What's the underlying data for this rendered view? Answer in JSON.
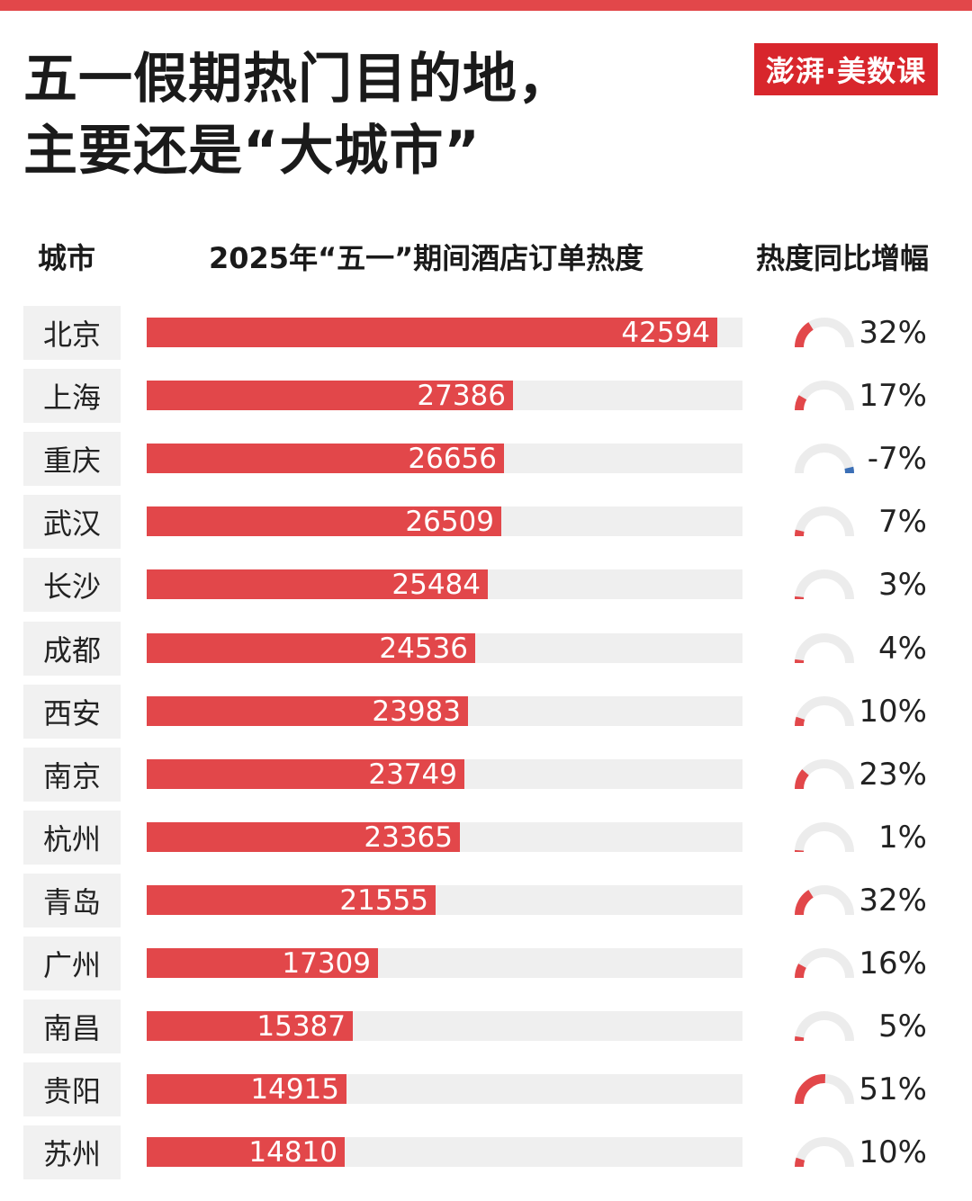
{
  "title_lines": [
    "五一假期热门目的地，",
    "主要还是“大城市”"
  ],
  "logo_text": "澎湃·美数课",
  "headers": {
    "city": "城市",
    "metric": "2025年“五一”期间酒店订单热度",
    "growth": "热度同比增幅"
  },
  "colors": {
    "bar": "#e2474a",
    "track": "#efefef",
    "gauge_bg": "#ececec",
    "negative": "#3b6fb6"
  },
  "chart_data": {
    "type": "bar",
    "orientation": "horizontal",
    "title": "五一假期热门目的地，主要还是“大城市”",
    "categories": [
      "北京",
      "上海",
      "重庆",
      "武汉",
      "长沙",
      "成都",
      "西安",
      "南京",
      "杭州",
      "青岛",
      "广州",
      "南昌",
      "贵阳",
      "苏州"
    ],
    "series": [
      {
        "name": "2025年“五一”期间酒店订单热度",
        "values": [
          42594,
          27386,
          26656,
          26509,
          25484,
          24536,
          23983,
          23749,
          23365,
          21555,
          17309,
          15387,
          14915,
          14810
        ]
      },
      {
        "name": "热度同比增幅",
        "values": [
          32,
          17,
          -7,
          7,
          3,
          4,
          10,
          23,
          1,
          32,
          16,
          5,
          51,
          10
        ],
        "labels": [
          "32%",
          "17%",
          "-7%",
          "7%",
          "3%",
          "4%",
          "10%",
          "23%",
          "1%",
          "32%",
          "16%",
          "5%",
          "51%",
          "10%"
        ]
      }
    ],
    "xlim": [
      0,
      44500
    ]
  }
}
